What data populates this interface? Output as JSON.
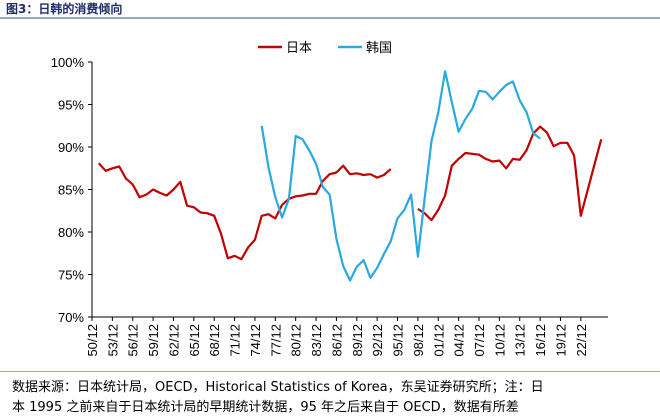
{
  "header": {
    "title": "图3：日韩的消费倾向"
  },
  "chart_data": {
    "type": "line",
    "title": "",
    "xlabel": "",
    "ylabel": "",
    "ylim": [
      70,
      100
    ],
    "y_ticks": [
      "70%",
      "75%",
      "80%",
      "85%",
      "90%",
      "95%",
      "100%"
    ],
    "x_ticks": [
      "50/12",
      "53/12",
      "56/12",
      "59/12",
      "62/12",
      "65/12",
      "68/12",
      "71/12",
      "74/12",
      "77/12",
      "80/12",
      "83/12",
      "86/12",
      "89/12",
      "92/12",
      "95/12",
      "98/12",
      "01/12",
      "04/12",
      "07/12",
      "10/12",
      "13/12",
      "16/12",
      "19/12",
      "22/12"
    ],
    "legend_position": "top-center",
    "grid": false,
    "series": [
      {
        "name": "日本",
        "color": "#c00000",
        "points": [
          [
            1951,
            88.1
          ],
          [
            1952,
            87.2
          ],
          [
            1953,
            87.5
          ],
          [
            1954,
            87.7
          ],
          [
            1955,
            86.3
          ],
          [
            1956,
            85.6
          ],
          [
            1957,
            84.1
          ],
          [
            1958,
            84.4
          ],
          [
            1959,
            85.0
          ],
          [
            1960,
            84.6
          ],
          [
            1961,
            84.3
          ],
          [
            1962,
            85.0
          ],
          [
            1963,
            85.9
          ],
          [
            1964,
            83.1
          ],
          [
            1965,
            82.9
          ],
          [
            1966,
            82.3
          ],
          [
            1967,
            82.2
          ],
          [
            1968,
            81.9
          ],
          [
            1969,
            79.8
          ],
          [
            1970,
            76.9
          ],
          [
            1971,
            77.2
          ],
          [
            1972,
            76.8
          ],
          [
            1973,
            78.2
          ],
          [
            1974,
            79.1
          ],
          [
            1975,
            81.9
          ],
          [
            1976,
            82.1
          ],
          [
            1977,
            81.6
          ],
          [
            1978,
            83.2
          ],
          [
            1979,
            83.9
          ],
          [
            1980,
            84.2
          ],
          [
            1981,
            84.3
          ],
          [
            1982,
            84.5
          ],
          [
            1983,
            84.5
          ],
          [
            1984,
            86.0
          ],
          [
            1985,
            86.8
          ],
          [
            1986,
            87.0
          ],
          [
            1987,
            87.8
          ],
          [
            1988,
            86.8
          ],
          [
            1989,
            86.9
          ],
          [
            1990,
            86.7
          ],
          [
            1991,
            86.8
          ],
          [
            1992,
            86.4
          ],
          [
            1993,
            86.7
          ],
          [
            1994,
            87.4
          ],
          [
            1998,
            82.7
          ],
          [
            1999,
            82.2
          ],
          [
            2000,
            81.4
          ],
          [
            2001,
            82.6
          ],
          [
            2002,
            84.3
          ],
          [
            2003,
            87.8
          ],
          [
            2004,
            88.6
          ],
          [
            2005,
            89.3
          ],
          [
            2006,
            89.2
          ],
          [
            2007,
            89.1
          ],
          [
            2008,
            88.6
          ],
          [
            2009,
            88.3
          ],
          [
            2010,
            88.4
          ],
          [
            2011,
            87.5
          ],
          [
            2012,
            88.6
          ],
          [
            2013,
            88.5
          ],
          [
            2014,
            89.6
          ],
          [
            2015,
            91.6
          ],
          [
            2016,
            92.4
          ],
          [
            2017,
            91.7
          ],
          [
            2018,
            90.1
          ],
          [
            2019,
            90.5
          ],
          [
            2020,
            90.5
          ],
          [
            2021,
            89.0
          ],
          [
            2022,
            81.9
          ],
          [
            2023,
            84.9
          ],
          [
            2024,
            87.9
          ],
          [
            2025,
            90.9
          ]
        ]
      },
      {
        "name": "韩国",
        "color": "#29a9e0",
        "points": [
          [
            1975,
            92.5
          ],
          [
            1976,
            87.6
          ],
          [
            1977,
            84.1
          ],
          [
            1978,
            81.7
          ],
          [
            1979,
            83.9
          ],
          [
            1980,
            91.3
          ],
          [
            1981,
            90.9
          ],
          [
            1982,
            89.6
          ],
          [
            1983,
            88.0
          ],
          [
            1984,
            85.3
          ],
          [
            1985,
            84.4
          ],
          [
            1986,
            79.2
          ],
          [
            1987,
            76.0
          ],
          [
            1988,
            74.3
          ],
          [
            1989,
            75.9
          ],
          [
            1990,
            76.7
          ],
          [
            1991,
            74.6
          ],
          [
            1992,
            75.8
          ],
          [
            1993,
            77.4
          ],
          [
            1994,
            78.9
          ],
          [
            1995,
            81.6
          ],
          [
            1996,
            82.6
          ],
          [
            1997,
            84.4
          ],
          [
            1998,
            77.1
          ],
          [
            1999,
            84.0
          ],
          [
            2000,
            90.7
          ],
          [
            2001,
            94.1
          ],
          [
            2002,
            98.9
          ],
          [
            2003,
            95.3
          ],
          [
            2004,
            91.8
          ],
          [
            2005,
            93.3
          ],
          [
            2006,
            94.5
          ],
          [
            2007,
            96.6
          ],
          [
            2008,
            96.5
          ],
          [
            2009,
            95.6
          ],
          [
            2010,
            96.5
          ],
          [
            2011,
            97.3
          ],
          [
            2012,
            97.7
          ],
          [
            2013,
            95.5
          ],
          [
            2014,
            94.1
          ],
          [
            2015,
            91.6
          ],
          [
            2016,
            91.0
          ]
        ]
      }
    ]
  },
  "footer": {
    "note_line1": "数据来源：日本统计局，OECD，Historical Statistics of Korea，东吴证券研究所；注：日",
    "note_line2": "本 1995 之前来自于日本统计局的早期统计数据，95 年之后来自于 OECD，数据有所差"
  }
}
